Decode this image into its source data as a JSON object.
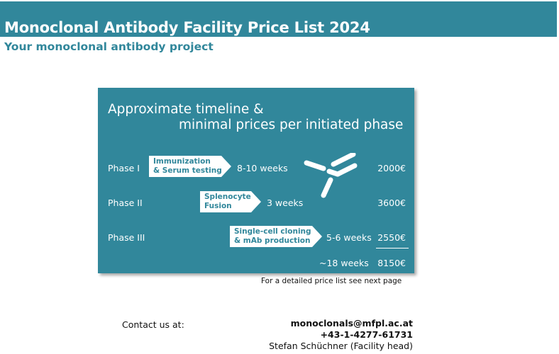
{
  "header": {
    "title": "Monoclonal Antibody Facility Price List 2024",
    "subtitle": "Your monoclonal antibody project"
  },
  "panel": {
    "heading_line1": "Approximate timeline &",
    "heading_line2": "minimal prices per initiated phase",
    "phases": [
      {
        "label": "Phase I",
        "step_line1": "Immunization",
        "step_line2": "& Serum testing",
        "duration": "8-10 weeks",
        "price": "2000€"
      },
      {
        "label": "Phase II",
        "step_line1": "Splenocyte",
        "step_line2": "Fusion",
        "duration": "3 weeks",
        "price": "3600€"
      },
      {
        "label": "Phase III",
        "step_line1": "Single-cell cloning",
        "step_line2": "& mAb production",
        "duration": "5-6 weeks",
        "price": "2550€"
      }
    ],
    "total_duration": "~18 weeks",
    "total_price": "8150€",
    "icon": "antibody-icon"
  },
  "note": "For a detailed price list see next page",
  "contact": {
    "label": "Contact us at:",
    "email": "monoclonals@mfpl.ac.at",
    "phone": "+43-1-4277-61731",
    "person": "Stefan Schüchner (Facility head)"
  },
  "colors": {
    "accent": "#31879b",
    "white": "#ffffff"
  }
}
